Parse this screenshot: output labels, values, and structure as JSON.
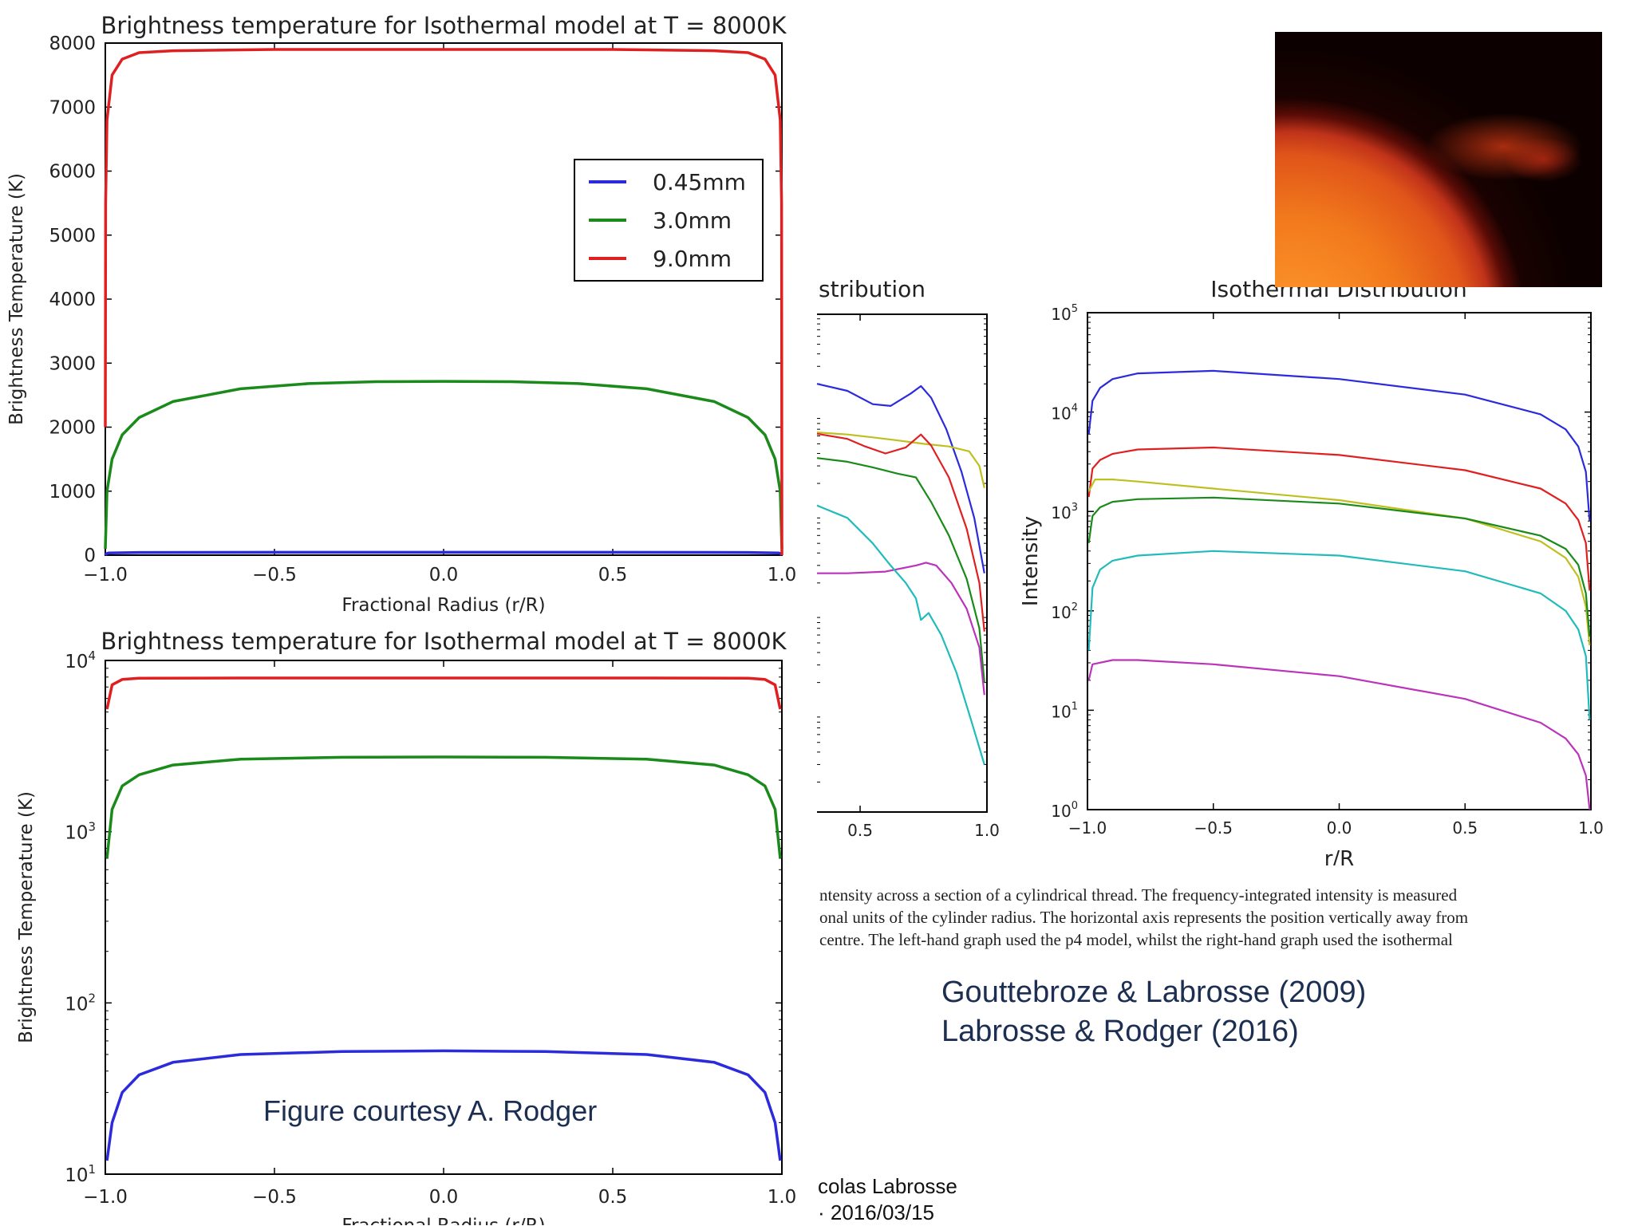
{
  "chart_data": [
    {
      "id": "top_left",
      "type": "line",
      "title": "Brightness temperature for Isothermal model at T = 8000K",
      "xlabel": "Fractional Radius (r/R)",
      "ylabel": "Brightness Temperature (K)",
      "xlim": [
        -1.0,
        1.0
      ],
      "ylim": [
        0,
        8000
      ],
      "yscale": "linear",
      "xticks": [
        "−1.0",
        "−0.5",
        "0.0",
        "0.5",
        "1.0"
      ],
      "yticks": [
        "0",
        "1000",
        "2000",
        "3000",
        "4000",
        "5000",
        "6000",
        "7000",
        "8000"
      ],
      "legend_position": "top-right",
      "series": [
        {
          "name": "0.45mm",
          "color": "#2b2bdc",
          "x": [
            -1.0,
            -0.998,
            -0.99,
            -0.9,
            -0.5,
            0.0,
            0.5,
            0.9,
            0.99,
            0.998,
            1.0
          ],
          "y": [
            0,
            20,
            35,
            42,
            45,
            45,
            45,
            42,
            35,
            20,
            0
          ]
        },
        {
          "name": "3.0mm",
          "color": "#1a8a1a",
          "x": [
            -1.0,
            -0.995,
            -0.98,
            -0.95,
            -0.9,
            -0.8,
            -0.6,
            -0.4,
            -0.2,
            0.0,
            0.2,
            0.4,
            0.6,
            0.8,
            0.9,
            0.95,
            0.98,
            0.995,
            1.0
          ],
          "y": [
            100,
            1000,
            1500,
            1880,
            2150,
            2400,
            2600,
            2680,
            2710,
            2715,
            2710,
            2680,
            2600,
            2400,
            2150,
            1880,
            1500,
            1000,
            100
          ]
        },
        {
          "name": "9.0mm",
          "color": "#e02020",
          "x": [
            -1.0,
            -0.999,
            -0.995,
            -0.98,
            -0.95,
            -0.9,
            -0.8,
            -0.5,
            0.0,
            0.5,
            0.8,
            0.9,
            0.95,
            0.98,
            0.995,
            0.999,
            1.0
          ],
          "y": [
            2000,
            5500,
            6800,
            7500,
            7750,
            7850,
            7880,
            7900,
            7900,
            7900,
            7880,
            7850,
            7750,
            7500,
            6800,
            5500,
            0
          ]
        }
      ]
    },
    {
      "id": "bottom_left",
      "type": "line",
      "title": "Brightness temperature for Isothermal model at T = 8000K",
      "xlabel": "Fractional Radius (r/R)",
      "ylabel": "Brightness Temperature (K)",
      "xlim": [
        -1.0,
        1.0
      ],
      "ylim": [
        10,
        10000
      ],
      "yscale": "log",
      "xticks": [
        "−1.0",
        "−0.5",
        "0.0",
        "0.5",
        "1.0"
      ],
      "yticks": [
        "10¹",
        "10²",
        "10³",
        "10⁴"
      ],
      "series": [
        {
          "color": "#2b2bdc",
          "x": [
            -0.995,
            -0.98,
            -0.95,
            -0.9,
            -0.8,
            -0.6,
            -0.3,
            0.0,
            0.3,
            0.6,
            0.8,
            0.9,
            0.95,
            0.98,
            0.995
          ],
          "y": [
            12,
            20,
            30,
            38,
            45,
            50,
            52,
            52.5,
            52,
            50,
            45,
            38,
            30,
            20,
            12
          ]
        },
        {
          "color": "#1a8a1a",
          "x": [
            -0.995,
            -0.98,
            -0.95,
            -0.9,
            -0.8,
            -0.6,
            -0.3,
            0.0,
            0.3,
            0.6,
            0.8,
            0.9,
            0.95,
            0.98,
            0.995
          ],
          "y": [
            700,
            1350,
            1850,
            2150,
            2450,
            2650,
            2720,
            2730,
            2720,
            2650,
            2450,
            2150,
            1850,
            1350,
            700
          ]
        },
        {
          "color": "#e02020",
          "x": [
            -0.995,
            -0.98,
            -0.95,
            -0.9,
            -0.6,
            0.0,
            0.6,
            0.9,
            0.95,
            0.98,
            0.995
          ],
          "y": [
            5200,
            7200,
            7750,
            7880,
            7900,
            7900,
            7900,
            7880,
            7750,
            7200,
            5200
          ]
        }
      ]
    },
    {
      "id": "middle_cropped",
      "type": "line",
      "title": "stribution",
      "xlim": [
        0.33,
        1.0
      ],
      "ylim": [
        1,
        100000
      ],
      "yscale": "log",
      "xticks": [
        "0.5",
        "1.0"
      ],
      "series": [
        {
          "color": "#2b2bdc",
          "x": [
            0.33,
            0.45,
            0.55,
            0.62,
            0.7,
            0.74,
            0.78,
            0.84,
            0.9,
            0.95,
            0.99
          ],
          "y": [
            20000,
            17000,
            12500,
            12000,
            16000,
            19000,
            14500,
            7000,
            2600,
            900,
            250
          ]
        },
        {
          "color": "#bfbf20",
          "x": [
            0.33,
            0.45,
            0.55,
            0.65,
            0.75,
            0.85,
            0.93,
            0.97,
            0.99
          ],
          "y": [
            6500,
            6200,
            5800,
            5400,
            5000,
            4700,
            4200,
            3000,
            1800
          ]
        },
        {
          "color": "#e02020",
          "x": [
            0.33,
            0.45,
            0.52,
            0.6,
            0.68,
            0.74,
            0.78,
            0.85,
            0.92,
            0.97,
            0.99
          ],
          "y": [
            6300,
            5600,
            4700,
            4000,
            4600,
            6200,
            4800,
            2300,
            700,
            200,
            65
          ]
        },
        {
          "color": "#1a8a1a",
          "x": [
            0.33,
            0.45,
            0.55,
            0.65,
            0.72,
            0.78,
            0.85,
            0.92,
            0.97,
            0.99
          ],
          "y": [
            3600,
            3300,
            2900,
            2500,
            2300,
            1300,
            600,
            220,
            70,
            20
          ]
        },
        {
          "color": "#bb33bb",
          "x": [
            0.33,
            0.45,
            0.6,
            0.72,
            0.76,
            0.8,
            0.86,
            0.92,
            0.97,
            0.99
          ],
          "y": [
            250,
            250,
            260,
            300,
            320,
            300,
            200,
            110,
            45,
            15
          ]
        },
        {
          "color": "#22bbbb",
          "x": [
            0.33,
            0.45,
            0.55,
            0.62,
            0.68,
            0.72,
            0.74,
            0.77,
            0.82,
            0.88,
            0.94,
            0.99
          ],
          "y": [
            1200,
            900,
            500,
            300,
            200,
            140,
            85,
            100,
            60,
            25,
            8,
            3
          ]
        }
      ]
    },
    {
      "id": "right",
      "type": "line",
      "title": "Isothermal Distribution",
      "xlabel": "r/R",
      "ylabel": "Intensity",
      "xlim": [
        -1.0,
        1.0
      ],
      "ylim": [
        1,
        100000
      ],
      "yscale": "log",
      "xticks": [
        "−1.0",
        "−0.5",
        "0.0",
        "0.5",
        "1.0"
      ],
      "yticks": [
        "10⁰",
        "10¹",
        "10²",
        "10³",
        "10⁴",
        "10⁵"
      ],
      "series": [
        {
          "color": "#2b2bdc",
          "x": [
            -0.995,
            -0.98,
            -0.95,
            -0.9,
            -0.8,
            -0.5,
            0.0,
            0.5,
            0.8,
            0.9,
            0.95,
            0.98,
            0.995
          ],
          "y": [
            6000,
            13000,
            17500,
            21500,
            24500,
            26000,
            21500,
            15000,
            9500,
            6700,
            4500,
            2500,
            800
          ]
        },
        {
          "color": "#e02020",
          "x": [
            -0.995,
            -0.98,
            -0.95,
            -0.9,
            -0.8,
            -0.5,
            0.0,
            0.5,
            0.8,
            0.9,
            0.95,
            0.98,
            0.995
          ],
          "y": [
            1400,
            2700,
            3300,
            3800,
            4200,
            4400,
            3700,
            2600,
            1700,
            1200,
            820,
            480,
            160
          ]
        },
        {
          "color": "#bfbf20",
          "x": [
            -0.995,
            -0.97,
            -0.9,
            -0.8,
            -0.5,
            0.0,
            0.5,
            0.8,
            0.9,
            0.95,
            0.98,
            0.995
          ],
          "y": [
            1600,
            2100,
            2100,
            2000,
            1700,
            1300,
            850,
            500,
            340,
            220,
            110,
            45
          ]
        },
        {
          "color": "#1a8a1a",
          "x": [
            -0.995,
            -0.98,
            -0.95,
            -0.9,
            -0.8,
            -0.5,
            0.0,
            0.5,
            0.8,
            0.9,
            0.95,
            0.98,
            0.995
          ],
          "y": [
            480,
            900,
            1100,
            1250,
            1330,
            1380,
            1200,
            850,
            570,
            420,
            290,
            150,
            55
          ]
        },
        {
          "color": "#22bbbb",
          "x": [
            -0.995,
            -0.98,
            -0.95,
            -0.9,
            -0.8,
            -0.5,
            0.0,
            0.5,
            0.8,
            0.9,
            0.95,
            0.98,
            0.995
          ],
          "y": [
            40,
            170,
            260,
            320,
            360,
            400,
            360,
            250,
            150,
            100,
            65,
            35,
            8
          ]
        },
        {
          "color": "#bb33bb",
          "x": [
            -0.995,
            -0.98,
            -0.9,
            -0.8,
            -0.5,
            0.0,
            0.5,
            0.8,
            0.9,
            0.95,
            0.98,
            0.995
          ],
          "y": [
            20,
            29,
            32,
            32,
            29,
            22,
            13,
            7.5,
            5.2,
            3.6,
            2.2,
            1.0
          ]
        }
      ]
    }
  ],
  "caption_lines": [
    "ntensity across a section of a cylindrical thread. The frequency-integrated intensity is measured",
    "onal units of the cylinder radius. The horizontal axis represents the position vertically away from",
    "centre. The left-hand graph used the p4 model, whilst the right-hand graph used the isothermal"
  ],
  "references": [
    "Gouttebroze & Labrosse (2009)",
    "Labrosse & Rodger (2016)"
  ],
  "courtesy": "Figure courtesy A. Rodger",
  "footer": [
    "colas Labrosse",
    "· 2016/03/15"
  ]
}
